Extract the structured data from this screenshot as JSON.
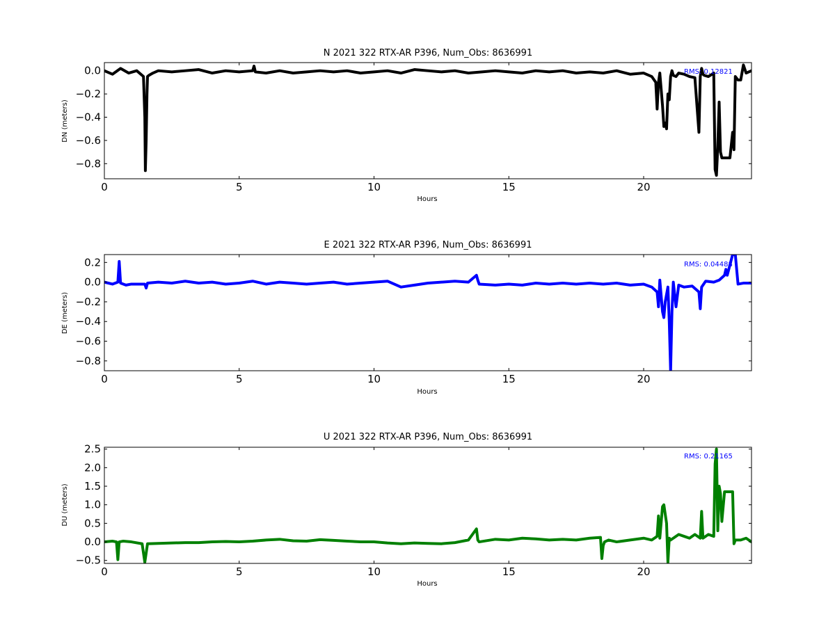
{
  "chart_data": [
    {
      "type": "line",
      "title": "N 2021 322 RTX-AR  P396, Num_Obs: 8636991",
      "xlabel": "Hours",
      "ylabel": "DN (meters)",
      "xlim": [
        0,
        24
      ],
      "ylim": [
        -0.93,
        0.07
      ],
      "xticks": [
        0,
        5,
        10,
        15,
        20
      ],
      "yticks": [
        0.0,
        -0.2,
        -0.4,
        -0.6,
        -0.8
      ],
      "ytick_labels": [
        "0.0",
        "−0.2",
        "−0.4",
        "−0.6",
        "−0.8"
      ],
      "color": "#000000",
      "annotation": "RMS:  0.12821",
      "grid": false,
      "series": [
        {
          "x": [
            0,
            0.3,
            0.6,
            0.9,
            1.2,
            1.45,
            1.5,
            1.52,
            1.55,
            1.58,
            1.6,
            1.65,
            1.8,
            2.0,
            2.5,
            3.0,
            3.5,
            4.0,
            4.5,
            5.0,
            5.5,
            5.55,
            5.6,
            6.0,
            6.5,
            7.0,
            7.5,
            8.0,
            8.5,
            9.0,
            9.5,
            10.0,
            10.5,
            11.0,
            11.5,
            12.0,
            12.5,
            13.0,
            13.5,
            14.0,
            14.5,
            15.0,
            15.5,
            16.0,
            16.5,
            17.0,
            17.5,
            18.0,
            18.5,
            19.0,
            19.5,
            20.0,
            20.3,
            20.45,
            20.5,
            20.55,
            20.6,
            20.7,
            20.75,
            20.8,
            20.85,
            20.9,
            20.95,
            21.0,
            21.05,
            21.1,
            21.2,
            21.3,
            21.5,
            21.7,
            21.9,
            22.05,
            22.1,
            22.15,
            22.2,
            22.25,
            22.4,
            22.6,
            22.65,
            22.7,
            22.75,
            22.8,
            22.85,
            22.9,
            23.0,
            23.1,
            23.2,
            23.3,
            23.35,
            23.4,
            23.5,
            23.6,
            23.7,
            23.8,
            24.0
          ],
          "y": [
            0.0,
            -0.03,
            0.02,
            -0.02,
            0.0,
            -0.05,
            -0.4,
            -0.86,
            -0.6,
            -0.2,
            -0.05,
            -0.04,
            -0.02,
            0.0,
            -0.01,
            0.0,
            0.01,
            -0.02,
            0.0,
            -0.01,
            0.0,
            0.04,
            -0.01,
            -0.02,
            0.0,
            -0.02,
            -0.01,
            0.0,
            -0.01,
            0.0,
            -0.02,
            -0.01,
            0.0,
            -0.02,
            0.01,
            0.0,
            -0.01,
            0.0,
            -0.02,
            -0.01,
            0.0,
            -0.01,
            -0.02,
            0.0,
            -0.01,
            0.0,
            -0.02,
            -0.01,
            -0.02,
            0.0,
            -0.03,
            -0.02,
            -0.05,
            -0.1,
            -0.33,
            -0.1,
            -0.02,
            -0.3,
            -0.48,
            -0.45,
            -0.5,
            -0.2,
            -0.25,
            -0.05,
            0.0,
            -0.04,
            -0.05,
            -0.02,
            -0.03,
            -0.05,
            -0.06,
            -0.53,
            -0.05,
            0.02,
            -0.03,
            -0.04,
            -0.05,
            -0.02,
            -0.85,
            -0.9,
            -0.65,
            -0.27,
            -0.7,
            -0.75,
            -0.75,
            -0.75,
            -0.75,
            -0.53,
            -0.68,
            -0.05,
            -0.08,
            -0.08,
            0.05,
            -0.02,
            0.0
          ]
        }
      ]
    },
    {
      "type": "line",
      "title": "E 2021 322 RTX-AR  P396, Num_Obs: 8636991",
      "xlabel": "Hours",
      "ylabel": "DE (meters)",
      "xlim": [
        0,
        24
      ],
      "ylim": [
        -0.9,
        0.28
      ],
      "xticks": [
        0,
        5,
        10,
        15,
        20
      ],
      "yticks": [
        0.2,
        0.0,
        -0.2,
        -0.4,
        -0.6,
        -0.8
      ],
      "ytick_labels": [
        "0.2",
        "0.0",
        "−0.2",
        "−0.4",
        "−0.6",
        "−0.8"
      ],
      "color": "#0000ff",
      "annotation": "RMS:  0.04488",
      "grid": false,
      "series": [
        {
          "x": [
            0,
            0.3,
            0.5,
            0.55,
            0.6,
            0.8,
            1.0,
            1.5,
            1.55,
            1.6,
            2.0,
            2.5,
            3.0,
            3.5,
            4.0,
            4.5,
            5.0,
            5.5,
            6.0,
            6.5,
            7.0,
            7.5,
            8.0,
            8.5,
            9.0,
            9.5,
            10.0,
            10.5,
            11.0,
            11.5,
            12.0,
            12.5,
            13.0,
            13.5,
            13.8,
            13.85,
            13.9,
            14.5,
            15.0,
            15.5,
            16.0,
            16.5,
            17.0,
            17.5,
            18.0,
            18.5,
            19.0,
            19.5,
            20.0,
            20.3,
            20.5,
            20.55,
            20.6,
            20.7,
            20.75,
            20.8,
            20.9,
            20.95,
            21.0,
            21.05,
            21.1,
            21.2,
            21.3,
            21.5,
            21.8,
            22.05,
            22.1,
            22.15,
            22.3,
            22.6,
            22.8,
            23.0,
            23.05,
            23.1,
            23.3,
            23.4,
            23.5,
            23.7,
            24.0
          ],
          "y": [
            0.0,
            -0.02,
            0.0,
            0.21,
            -0.01,
            -0.03,
            -0.02,
            -0.02,
            -0.06,
            -0.01,
            0.0,
            -0.01,
            0.01,
            -0.01,
            0.0,
            -0.02,
            -0.01,
            0.01,
            -0.02,
            0.0,
            -0.01,
            -0.02,
            -0.01,
            0.0,
            -0.02,
            -0.01,
            0.0,
            0.01,
            -0.05,
            -0.03,
            -0.01,
            0.0,
            0.01,
            0.0,
            0.07,
            0.02,
            -0.02,
            -0.03,
            -0.02,
            -0.03,
            -0.01,
            -0.02,
            -0.01,
            -0.02,
            -0.01,
            -0.02,
            -0.01,
            -0.03,
            -0.02,
            -0.05,
            -0.1,
            -0.25,
            0.02,
            -0.3,
            -0.36,
            -0.2,
            -0.05,
            -0.4,
            -0.9,
            -0.3,
            0.0,
            -0.25,
            -0.03,
            -0.05,
            -0.04,
            -0.1,
            -0.27,
            -0.05,
            0.01,
            0.0,
            0.02,
            0.07,
            0.13,
            0.07,
            0.28,
            0.28,
            -0.02,
            -0.01,
            -0.01
          ]
        }
      ]
    },
    {
      "type": "line",
      "title": "U 2021 322 RTX-AR  P396, Num_Obs: 8636991",
      "xlabel": "Hours",
      "ylabel": "DU (meters)",
      "xlim": [
        0,
        24
      ],
      "ylim": [
        -0.58,
        2.55
      ],
      "xticks": [
        0,
        5,
        10,
        15,
        20
      ],
      "yticks": [
        2.5,
        2.0,
        1.5,
        1.0,
        0.5,
        0.0,
        -0.5
      ],
      "ytick_labels": [
        "2.5",
        "2.0",
        "1.5",
        "1.0",
        "0.5",
        "0.0",
        "−0.5"
      ],
      "color": "#008000",
      "annotation": "RMS:  0.21165",
      "grid": false,
      "series": [
        {
          "x": [
            0,
            0.3,
            0.45,
            0.5,
            0.55,
            0.7,
            1.0,
            1.4,
            1.5,
            1.55,
            1.6,
            2.0,
            2.5,
            3.0,
            3.5,
            4.0,
            4.5,
            5.0,
            5.5,
            6.0,
            6.5,
            7.0,
            7.5,
            8.0,
            8.5,
            9.0,
            9.5,
            10.0,
            10.5,
            11.0,
            11.5,
            12.0,
            12.5,
            13.0,
            13.5,
            13.8,
            13.85,
            13.9,
            14.5,
            15.0,
            15.5,
            16.0,
            16.5,
            17.0,
            17.5,
            18.0,
            18.4,
            18.45,
            18.5,
            18.55,
            18.7,
            19.0,
            19.5,
            20.0,
            20.3,
            20.5,
            20.55,
            20.6,
            20.7,
            20.75,
            20.85,
            20.9,
            20.95,
            21.0,
            21.1,
            21.3,
            21.5,
            21.7,
            21.9,
            22.1,
            22.15,
            22.2,
            22.4,
            22.6,
            22.65,
            22.7,
            22.75,
            22.8,
            22.85,
            22.9,
            23.0,
            23.2,
            23.3,
            23.35,
            23.4,
            23.6,
            23.8,
            24.0
          ],
          "y": [
            0.0,
            0.02,
            0.0,
            -0.48,
            0.0,
            0.02,
            0.0,
            -0.05,
            -0.55,
            -0.3,
            -0.05,
            -0.04,
            -0.03,
            -0.02,
            -0.02,
            0.0,
            0.01,
            0.0,
            0.02,
            0.05,
            0.07,
            0.03,
            0.02,
            0.06,
            0.04,
            0.02,
            0.0,
            0.0,
            -0.03,
            -0.05,
            -0.03,
            -0.04,
            -0.05,
            -0.02,
            0.05,
            0.35,
            0.05,
            0.0,
            0.07,
            0.05,
            0.1,
            0.08,
            0.05,
            0.07,
            0.05,
            0.1,
            0.12,
            -0.45,
            -0.1,
            0.0,
            0.05,
            0.0,
            0.05,
            0.1,
            0.05,
            0.15,
            0.7,
            0.1,
            0.95,
            1.0,
            0.5,
            -0.55,
            0.1,
            0.05,
            0.1,
            0.2,
            0.15,
            0.1,
            0.2,
            0.1,
            0.82,
            0.1,
            0.2,
            0.15,
            2.1,
            2.5,
            0.3,
            1.5,
            1.3,
            0.55,
            1.35,
            1.35,
            1.35,
            -0.05,
            0.05,
            0.05,
            0.1,
            0.0
          ]
        }
      ]
    }
  ]
}
